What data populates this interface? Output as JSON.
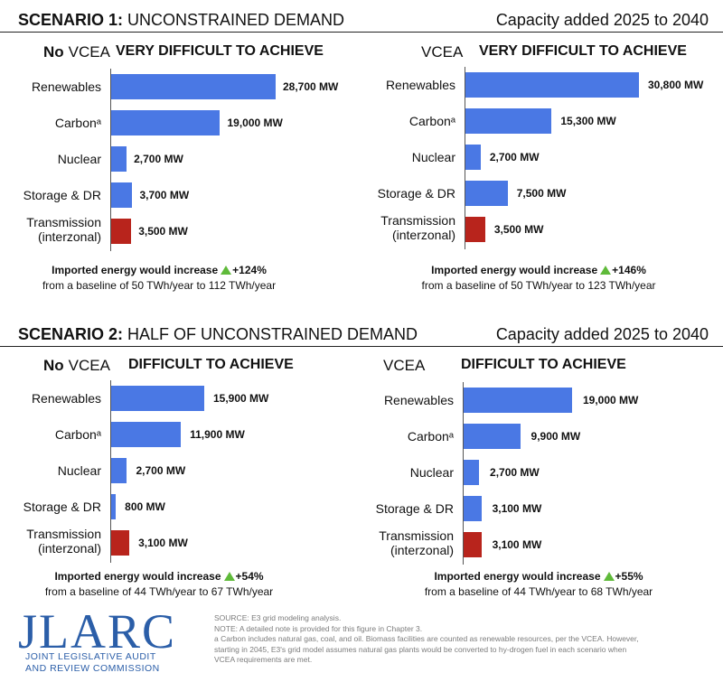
{
  "scenario1": {
    "title_bold": "SCENARIO 1:",
    "title_rest": "UNCONSTRAINED DEMAND",
    "right_label": "Capacity added 2025 to 2040"
  },
  "scenario2": {
    "title_bold": "SCENARIO 2:",
    "title_rest": "HALF OF UNCONSTRAINED DEMAND",
    "right_label": "Capacity added 2025 to 2040"
  },
  "colors": {
    "bar_blue": "#4a78e4",
    "bar_red": "#b8241c",
    "up_arrow": "#5fba3a",
    "logo": "#2b5ea8"
  },
  "chart_data": [
    {
      "type": "bar",
      "orientation": "horizontal",
      "label_bold": "No",
      "label_rest": "VCEA",
      "title": "VERY DIFFICULT TO ACHIEVE",
      "categories": [
        "Renewables",
        "Carbonᵃ",
        "Nuclear",
        "Storage & DR",
        "Transmission (interzonal)"
      ],
      "values": [
        28700,
        19000,
        2700,
        3700,
        3500
      ],
      "value_labels": [
        "28,700 MW",
        "19,000 MW",
        "2,700 MW",
        "3,700 MW",
        "3,500 MW"
      ],
      "bar_colors": [
        "blue",
        "blue",
        "blue",
        "blue",
        "red"
      ],
      "import_text": "Imported energy would increase",
      "import_change": "+124%",
      "baseline_text": "from a baseline of 50 TWh/year to 112 TWh/year"
    },
    {
      "type": "bar",
      "orientation": "horizontal",
      "label_bold": "",
      "label_rest": "VCEA",
      "title": "VERY DIFFICULT TO ACHIEVE",
      "categories": [
        "Renewables",
        "Carbonᵃ",
        "Nuclear",
        "Storage & DR",
        "Transmission (interzonal)"
      ],
      "values": [
        30800,
        15300,
        2700,
        7500,
        3500
      ],
      "value_labels": [
        "30,800 MW",
        "15,300 MW",
        "2,700 MW",
        "7,500 MW",
        "3,500 MW"
      ],
      "bar_colors": [
        "blue",
        "blue",
        "blue",
        "blue",
        "red"
      ],
      "import_text": "Imported energy would increase",
      "import_change": "+146%",
      "baseline_text": "from a baseline of 50 TWh/year to 123 TWh/year"
    },
    {
      "type": "bar",
      "orientation": "horizontal",
      "label_bold": "No",
      "label_rest": "VCEA",
      "title": "DIFFICULT TO ACHIEVE",
      "categories": [
        "Renewables",
        "Carbonᵃ",
        "Nuclear",
        "Storage & DR",
        "Transmission (interzonal)"
      ],
      "values": [
        15900,
        11900,
        2700,
        800,
        3100
      ],
      "value_labels": [
        "15,900 MW",
        "11,900 MW",
        "2,700 MW",
        "800 MW",
        "3,100 MW"
      ],
      "bar_colors": [
        "blue",
        "blue",
        "blue",
        "blue",
        "red"
      ],
      "import_text": "Imported energy would increase",
      "import_change": "+54%",
      "baseline_text": "from a baseline of 44 TWh/year to 67 TWh/year"
    },
    {
      "type": "bar",
      "orientation": "horizontal",
      "label_bold": "",
      "label_rest": "VCEA",
      "title": "DIFFICULT TO ACHIEVE",
      "categories": [
        "Renewables",
        "Carbonᵃ",
        "Nuclear",
        "Storage & DR",
        "Transmission (interzonal)"
      ],
      "values": [
        19000,
        9900,
        2700,
        3100,
        3100
      ],
      "value_labels": [
        "19,000 MW",
        "9,900 MW",
        "2,700 MW",
        "3,100 MW",
        "3,100 MW"
      ],
      "bar_colors": [
        "blue",
        "blue",
        "blue",
        "blue",
        "red"
      ],
      "import_text": "Imported energy would increase",
      "import_change": "+55%",
      "baseline_text": "from a baseline of 44 TWh/year to 68 TWh/year"
    }
  ],
  "logo": {
    "main": "JLARC",
    "line1": "JOINT LEGISLATIVE AUDIT",
    "line2": "AND REVIEW COMMISSION"
  },
  "notes": [
    "SOURCE: E3 grid modeling analysis.",
    "NOTE: A detailed note is provided for this figure in Chapter 3.",
    "a Carbon includes natural gas, coal, and oil. Biomass facilities are counted as renewable resources, per the VCEA. However,",
    "starting in 2045, E3's grid model assumes natural gas plants would be converted to hy-drogen fuel in each scenario when",
    "VCEA requirements are met."
  ]
}
